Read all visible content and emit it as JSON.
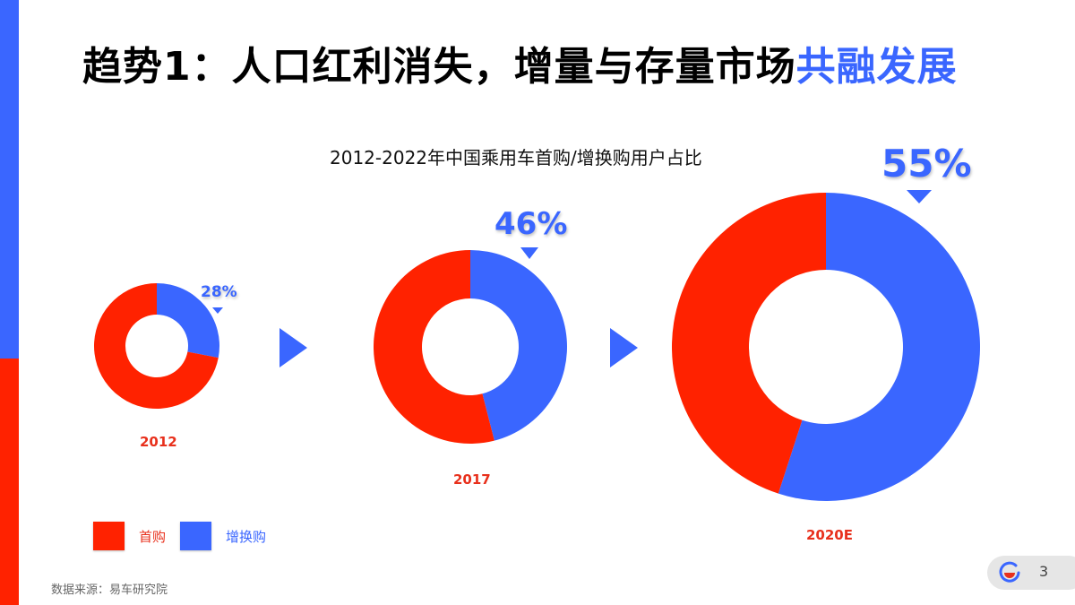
{
  "header": {
    "title_prefix": "趋势1：人口红利消失，增量与存量市场",
    "title_highlight": "共融发展"
  },
  "colors": {
    "first_purchase": "#ff2200",
    "upgrade_purchase": "#3a66ff",
    "year_label": "#e8301c",
    "sidebar_top": "#3a66ff",
    "sidebar_bottom": "#ff2200"
  },
  "chart_data": {
    "type": "pie",
    "variant": "donut",
    "title": "2012-2022年中国乘用车首购/增换购用户占比",
    "categories": [
      "2012",
      "2017",
      "2020E"
    ],
    "series": [
      {
        "name": "首购",
        "values": [
          72,
          54,
          45
        ],
        "color": "#ff2200"
      },
      {
        "name": "增换购",
        "values": [
          28,
          46,
          55
        ],
        "color": "#3a66ff"
      }
    ],
    "data_labels": [
      "28%",
      "46%",
      "55%"
    ],
    "legend": {
      "entries": [
        "首购",
        "增换购"
      ],
      "position": "bottom-left"
    }
  },
  "charts": [
    {
      "year": "2012",
      "label": "28%"
    },
    {
      "year": "2017",
      "label": "46%"
    },
    {
      "year": "2020E",
      "label": "55%"
    }
  ],
  "legend": [
    {
      "label": "首购",
      "color": "#ff2200"
    },
    {
      "label": "增换购",
      "color": "#3a66ff"
    }
  ],
  "footer": {
    "source": "数据来源：易车研究院",
    "page_number": "3",
    "logo_icon": "brand-logo-icon"
  }
}
